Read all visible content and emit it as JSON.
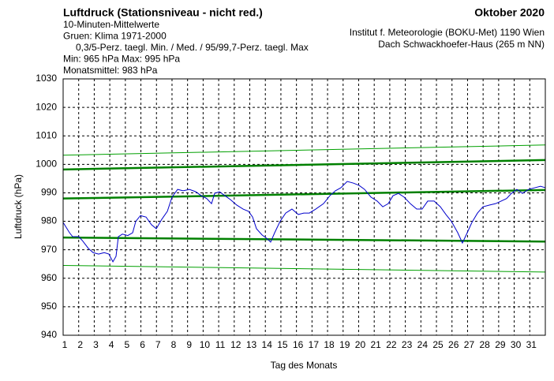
{
  "chart_data": {
    "type": "line",
    "title": "Luftdruck (Stationsniveau - nicht red.)",
    "title_right": "Oktober 2020",
    "subtitle_lines": [
      "10-Minuten-Mittelwerte",
      "Gruen: Klima 1971-2000",
      "0,3/5-Perz. taegl. Min. / Med. / 95/99,7-Perz. taegl. Max",
      "Min:  965 hPa   Max:  995 hPa",
      "Monatsmittel:  983 hPa"
    ],
    "source_lines": [
      "Institut f. Meteorologie (BOKU-Met) 1190 Wien",
      "Dach Schwackhoefer-Haus (265 m NN)"
    ],
    "y_label": "Luftdruck (hPa)",
    "x_label": "Tag des Monats",
    "xlim": [
      1,
      32
    ],
    "xticks": [
      1,
      2,
      3,
      4,
      5,
      6,
      7,
      8,
      9,
      10,
      11,
      12,
      13,
      14,
      15,
      16,
      17,
      18,
      19,
      20,
      21,
      22,
      23,
      24,
      25,
      26,
      27,
      28,
      29,
      30,
      31
    ],
    "ylim": [
      940,
      1030
    ],
    "yticks": [
      940,
      950,
      960,
      970,
      980,
      990,
      1000,
      1010,
      1020,
      1030
    ],
    "grid": true,
    "series": [
      {
        "color": "#00a000",
        "line_width": 1,
        "x": [
          1,
          32
        ],
        "values": [
          1003.2,
          1006.8
        ]
      },
      {
        "color": "#008000",
        "line_width": 2.5,
        "x": [
          1,
          32
        ],
        "values": [
          998.2,
          1001.5
        ]
      },
      {
        "color": "#008000",
        "line_width": 2.5,
        "x": [
          1,
          32
        ],
        "values": [
          988.0,
          991.0
        ]
      },
      {
        "color": "#008000",
        "line_width": 2.5,
        "x": [
          1,
          32
        ],
        "values": [
          974.3,
          972.9
        ]
      },
      {
        "color": "#00a000",
        "line_width": 1,
        "x": [
          1,
          32
        ],
        "values": [
          964.5,
          962.2
        ]
      },
      {
        "color": "#0000cc",
        "line_width": 1,
        "x": [
          1.0,
          1.41,
          1.61,
          2.01,
          2.27,
          2.62,
          2.93,
          3.28,
          3.64,
          3.94,
          4.2,
          4.4,
          4.55,
          4.81,
          5.16,
          5.47,
          5.67,
          5.97,
          6.33,
          6.68,
          6.99,
          7.34,
          7.7,
          8.0,
          8.36,
          8.71,
          9.12,
          9.52,
          9.88,
          10.23,
          10.54,
          10.74,
          11.05,
          11.4,
          11.76,
          12.16,
          12.57,
          12.92,
          13.18,
          13.43,
          13.79,
          14.09,
          14.34,
          14.6,
          14.95,
          15.31,
          15.71,
          16.12,
          16.47,
          16.83,
          17.24,
          17.74,
          18.15,
          18.5,
          18.86,
          19.26,
          19.67,
          20.03,
          20.38,
          20.79,
          21.19,
          21.55,
          21.9,
          22.21,
          22.56,
          22.92,
          23.32,
          23.73,
          24.08,
          24.44,
          24.85,
          25.25,
          25.61,
          25.96,
          26.37,
          26.67,
          26.98,
          27.28,
          27.64,
          27.99,
          28.4,
          28.8,
          29.16,
          29.51,
          29.82,
          30.17,
          30.53,
          30.93,
          31.34,
          31.69,
          32.0
        ],
        "values": [
          979.6,
          976,
          974.6,
          974.6,
          973,
          970.5,
          969,
          968.5,
          969,
          968.5,
          965.8,
          967.7,
          974.6,
          975.5,
          975,
          976,
          980,
          982,
          981.5,
          978.8,
          977.4,
          980.7,
          983.5,
          988.5,
          991.2,
          990.7,
          991.2,
          990.4,
          989,
          988,
          986.2,
          989.8,
          990.4,
          989,
          987.6,
          985.7,
          984.3,
          983.5,
          981.5,
          977.4,
          975.2,
          974,
          972.7,
          976,
          980,
          982.9,
          984.3,
          982.4,
          982.9,
          982.9,
          984.3,
          986.2,
          989,
          990.7,
          991.8,
          994,
          993.4,
          992.6,
          991.2,
          988.5,
          987.1,
          985.1,
          986.2,
          989,
          989.8,
          988.5,
          986.2,
          984.3,
          984.3,
          987.1,
          987.1,
          985.1,
          982.4,
          980,
          976,
          972.4,
          976,
          979.6,
          982.9,
          985.1,
          985.7,
          986.2,
          987.1,
          988,
          989.8,
          991.2,
          989.8,
          991.2,
          991.8,
          992.3,
          991.8
        ]
      }
    ]
  }
}
